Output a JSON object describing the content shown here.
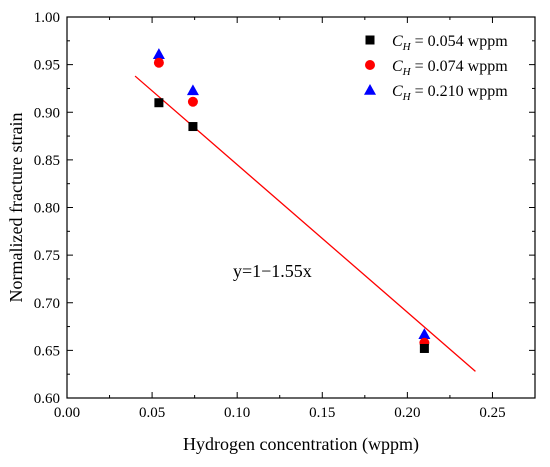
{
  "chart_data": {
    "type": "scatter",
    "xlabel": "Hydrogen concentration (wppm)",
    "ylabel": "Normalized fracture strain",
    "xlim": [
      0.0,
      0.275
    ],
    "ylim": [
      0.6,
      1.0
    ],
    "xticks": [
      "0.00",
      "0.05",
      "0.10",
      "0.15",
      "0.20",
      "0.25"
    ],
    "yticks": [
      "0.60",
      "0.65",
      "0.70",
      "0.75",
      "0.80",
      "0.85",
      "0.90",
      "0.95",
      "1.00"
    ],
    "grid": false,
    "legend_position": "top-right",
    "series": [
      {
        "name_var": "C",
        "name_sub": "H",
        "name_rest": " = 0.054 wppm",
        "marker": "square",
        "color": "#000000",
        "x": [
          0.054,
          0.074,
          0.21
        ],
        "y": [
          0.91,
          0.885,
          0.652
        ]
      },
      {
        "name_var": "C",
        "name_sub": "H",
        "name_rest": " = 0.074 wppm",
        "marker": "circle",
        "color": "#ff0000",
        "x": [
          0.054,
          0.074,
          0.21
        ],
        "y": [
          0.952,
          0.911,
          0.658
        ]
      },
      {
        "name_var": "C",
        "name_sub": "H",
        "name_rest": " = 0.210 wppm",
        "marker": "triangle",
        "color": "#0000ff",
        "x": [
          0.054,
          0.074,
          0.21
        ],
        "y": [
          0.961,
          0.923,
          0.667
        ]
      }
    ],
    "fit_line": {
      "label": "y=1−1.55x",
      "color": "#ff0000",
      "x": [
        0.04,
        0.24
      ],
      "y": [
        0.938,
        0.628
      ]
    }
  }
}
